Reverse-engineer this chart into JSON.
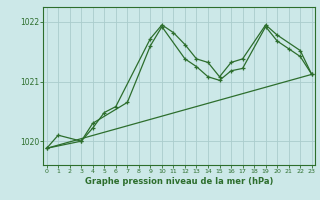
{
  "bg_color": "#cce8e8",
  "grid_color": "#aacccc",
  "line_color": "#2d6e2d",
  "ylabel_ticks": [
    1020,
    1021,
    1022
  ],
  "xticks": [
    0,
    1,
    2,
    3,
    4,
    5,
    6,
    7,
    8,
    9,
    10,
    11,
    12,
    13,
    14,
    15,
    16,
    17,
    18,
    19,
    20,
    21,
    22,
    23
  ],
  "xlim": [
    -0.3,
    23.3
  ],
  "ylim": [
    1019.6,
    1022.25
  ],
  "xlabel": "Graphe pression niveau de la mer (hPa)",
  "series1_x": [
    0,
    1,
    3,
    4,
    7,
    9,
    10,
    12,
    13,
    14,
    15,
    16,
    17,
    19,
    20,
    21,
    22,
    23
  ],
  "series1_y": [
    1019.88,
    1020.1,
    1020.0,
    1020.3,
    1020.65,
    1021.6,
    1021.92,
    1021.38,
    1021.25,
    1021.08,
    1021.02,
    1021.18,
    1021.22,
    1021.92,
    1021.68,
    1021.55,
    1021.42,
    1021.12
  ],
  "series2_x": [
    0,
    3,
    4,
    5,
    6,
    9,
    10,
    11,
    12,
    13,
    14,
    15,
    16,
    17,
    19,
    20,
    22,
    23
  ],
  "series2_y": [
    1019.88,
    1020.0,
    1020.22,
    1020.48,
    1020.58,
    1021.72,
    1021.95,
    1021.82,
    1021.62,
    1021.38,
    1021.32,
    1021.08,
    1021.32,
    1021.38,
    1021.95,
    1021.78,
    1021.52,
    1021.12
  ],
  "series3_x": [
    0,
    23
  ],
  "series3_y": [
    1019.88,
    1021.12
  ]
}
